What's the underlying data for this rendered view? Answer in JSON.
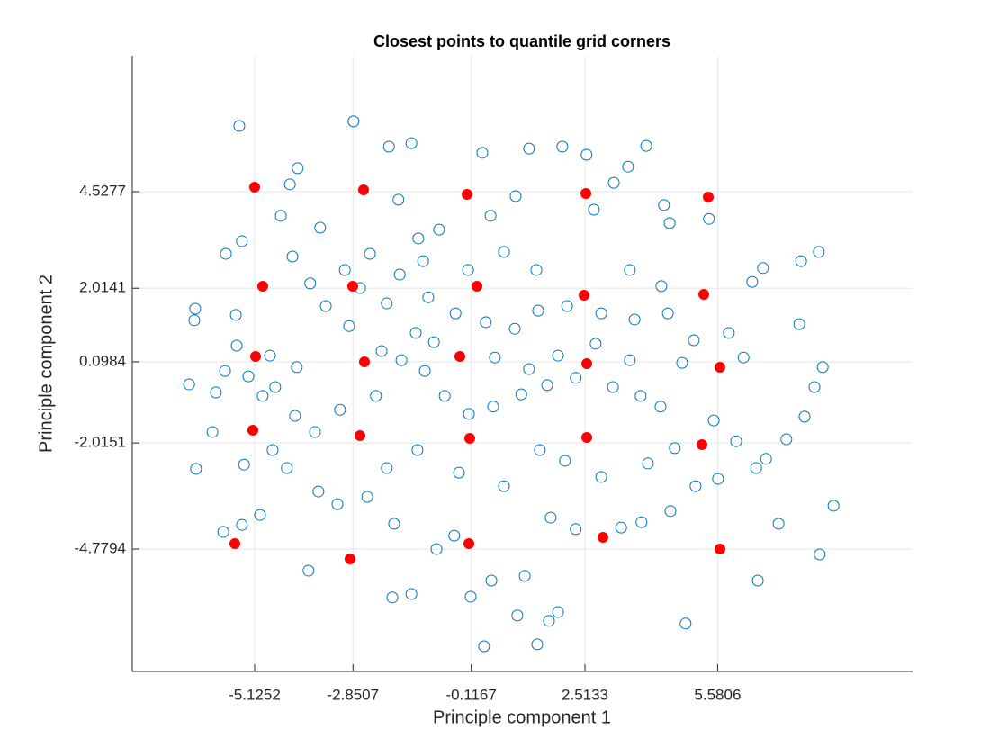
{
  "chart_data": {
    "type": "scatter",
    "title": "Closest points to quantile grid corners",
    "xlabel": "Principle component 1",
    "ylabel": "Principle component 2",
    "xlim": [
      -7.955,
      10.088
    ],
    "ylim": [
      -7.967,
      8.068
    ],
    "xticks": [
      -5.1252,
      -2.8507,
      -0.1167,
      2.5133,
      5.5806
    ],
    "yticks": [
      -4.7794,
      -2.0151,
      0.0984,
      2.0141,
      4.5277
    ],
    "grid": true,
    "series": [
      {
        "color": "#0072bd",
        "filled": false,
        "x": [
          -5.48,
          -2.84,
          -2.02,
          -1.5,
          0.14,
          1.22,
          1.99,
          3.93,
          2.55,
          -6.52,
          -6.5,
          -6.64,
          -6.48,
          -5.85,
          -5.42,
          -5.0,
          -3.88,
          -1.94,
          -1.5,
          -0.13,
          0.18,
          0.95,
          1.41,
          1.68,
          1.89,
          4.84,
          7.94,
          8.26,
          6.99,
          6.51,
          7.59,
          7.82,
          8.01,
          7.47,
          7.92,
          7.51,
          6.63,
          6.38,
          5.38,
          4.47,
          4.34,
          3.51,
          3.18,
          2.72,
          0.91,
          0.33,
          -0.86,
          -1.34,
          -1.8,
          -2.46,
          -3.04,
          -3.61,
          -4.13,
          -4.31,
          -4.52,
          -5.42,
          -5.79,
          -5.56,
          -5.54,
          -5.81,
          -4.94,
          -6.02,
          -6.1,
          -5.37,
          -4.38,
          -3.65,
          -3.21,
          -2.52,
          -1.9,
          -0.92,
          -0.51,
          0.35,
          1.12,
          1.72,
          2.3,
          3.35,
          3.82,
          4.49,
          5.07,
          5.59,
          6.47,
          7.17,
          6.7,
          6.01,
          5.49,
          4.26,
          3.8,
          3.16,
          2.3,
          1.64,
          1.04,
          0.39,
          -0.17,
          -0.73,
          -1.19,
          -1.73,
          -2.19,
          -2.94,
          -3.48,
          -3.84,
          -4.25,
          -1.77,
          -1.11,
          -0.48,
          0.22,
          0.89,
          1.43,
          2.1,
          2.89,
          3.66,
          4.43,
          5.03,
          5.84,
          6.18,
          4.76,
          3.55,
          2.76,
          1.89,
          1.22,
          0.43,
          -0.98,
          -1.4,
          -2.32,
          -3.15,
          -3.73,
          -4.19,
          -4.71,
          -2.07,
          -1.36,
          -0.4,
          0.64,
          1.47,
          2.05,
          2.89,
          3.97,
          4.59,
          3.55,
          4.28,
          1.39,
          0.64,
          -0.19,
          -1.23,
          -2.07,
          -2.69,
          -4.77,
          -5.27,
          -4.65,
          -4.15
        ],
        "values": [
          6.24,
          6.36,
          5.7,
          5.79,
          5.54,
          5.65,
          5.7,
          5.72,
          5.49,
          1.18,
          1.48,
          -0.49,
          -2.69,
          -4.33,
          -4.15,
          -3.89,
          -5.34,
          -6.04,
          -5.95,
          -6.02,
          -7.31,
          -6.51,
          -7.26,
          -6.65,
          -6.42,
          -6.72,
          -4.92,
          -3.65,
          -4.12,
          -5.6,
          -1.33,
          -0.56,
          -0.04,
          1.08,
          2.96,
          2.72,
          2.54,
          2.18,
          3.82,
          3.71,
          4.18,
          5.18,
          4.76,
          4.06,
          4.41,
          3.9,
          3.54,
          3.31,
          4.32,
          2.91,
          2.49,
          3.59,
          5.14,
          4.72,
          3.9,
          3.24,
          2.91,
          1.32,
          0.52,
          -0.14,
          -0.79,
          -0.7,
          -1.73,
          -2.58,
          -2.67,
          -3.28,
          -3.61,
          -3.42,
          -4.12,
          -4.78,
          -4.43,
          -5.6,
          -5.48,
          -3.96,
          -4.26,
          -4.22,
          -4.08,
          -3.79,
          -3.14,
          -2.95,
          -2.67,
          -1.92,
          -2.43,
          -1.97,
          -1.43,
          -1.07,
          -0.79,
          -0.56,
          -0.32,
          -0.51,
          -0.75,
          -1.07,
          -1.26,
          -0.79,
          -0.14,
          0.14,
          0.38,
          1.03,
          1.55,
          2.14,
          2.84,
          2.37,
          1.78,
          1.36,
          1.13,
          0.96,
          1.43,
          1.55,
          1.36,
          1.2,
          1.36,
          0.66,
          0.85,
          0.21,
          0.07,
          0.14,
          0.57,
          0.26,
          -0.09,
          0.21,
          0.61,
          0.85,
          -0.79,
          -1.15,
          -1.73,
          -1.31,
          -2.2,
          -2.67,
          -2.2,
          -2.79,
          -3.14,
          -2.2,
          -2.48,
          -2.9,
          -2.55,
          -2.15,
          2.49,
          2.07,
          2.49,
          2.96,
          2.49,
          2.72,
          1.62,
          2.02,
          0.26,
          -0.28,
          -0.56,
          -0.04
        ]
      },
      {
        "color": "#ff0000",
        "filled": true,
        "x": [
          -5.125,
          -2.607,
          -0.214,
          2.534,
          5.364,
          -4.938,
          -2.857,
          0.015,
          2.492,
          5.26,
          -5.104,
          -2.586,
          -0.38,
          2.555,
          5.635,
          -5.167,
          -2.69,
          -0.151,
          2.555,
          5.218,
          -5.583,
          -2.919,
          -0.172,
          2.929,
          5.635
        ],
        "values": [
          4.645,
          4.575,
          4.457,
          4.481,
          4.387,
          2.066,
          2.066,
          2.066,
          1.832,
          1.855,
          0.238,
          0.097,
          0.238,
          0.05,
          -0.043,
          -1.684,
          -1.825,
          -1.895,
          -1.872,
          -2.059,
          -4.638,
          -5.037,
          -4.638,
          -4.474,
          -4.779
        ]
      }
    ]
  }
}
